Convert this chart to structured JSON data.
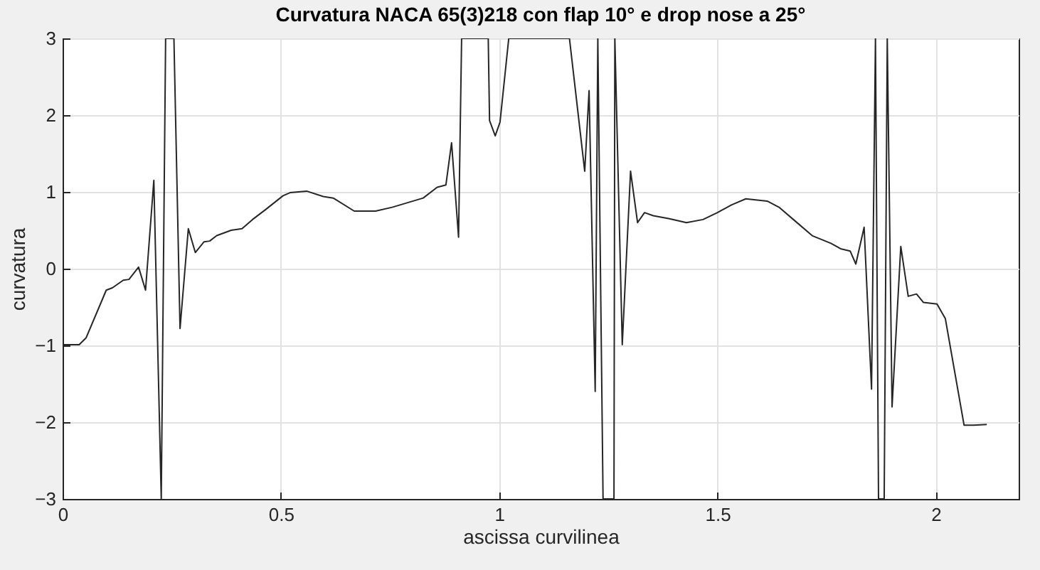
{
  "chart_data": {
    "type": "line",
    "title": "Curvatura NACA 65(3)218 con flap 10° e drop nose a 25°",
    "xlabel": "ascissa curvilinea",
    "ylabel": "curvatura",
    "x": [
      0,
      0.038,
      0.054,
      0.1,
      0.114,
      0.139,
      0.152,
      0.174,
      0.19,
      0.209,
      0.226,
      0.236,
      0.255,
      0.269,
      0.288,
      0.304,
      0.324,
      0.337,
      0.353,
      0.386,
      0.411,
      0.435,
      0.465,
      0.505,
      0.521,
      0.559,
      0.597,
      0.62,
      0.668,
      0.717,
      0.755,
      0.826,
      0.858,
      0.878,
      0.891,
      0.907,
      0.914,
      0.975,
      0.978,
      0.991,
      1.002,
      1.022,
      1.161,
      1.196,
      1.206,
      1.22,
      1.226,
      1.238,
      1.263,
      1.265,
      1.282,
      1.301,
      1.317,
      1.333,
      1.353,
      1.39,
      1.429,
      1.467,
      1.5,
      1.532,
      1.565,
      1.614,
      1.641,
      1.674,
      1.717,
      1.76,
      1.782,
      1.804,
      1.817,
      1.836,
      1.853,
      1.862,
      1.869,
      1.882,
      1.889,
      1.9,
      1.92,
      1.937,
      1.956,
      1.972,
      2.003,
      2.022,
      2.065,
      2.087,
      2.117
    ],
    "series": [
      {
        "color": "#262626",
        "values": [
          -0.99,
          -0.99,
          -0.9,
          -0.28,
          -0.25,
          -0.15,
          -0.14,
          0.02,
          -0.28,
          1.15,
          -3,
          3,
          3,
          -0.78,
          0.52,
          0.21,
          0.35,
          0.36,
          0.43,
          0.5,
          0.52,
          0.64,
          0.77,
          0.95,
          0.99,
          1.01,
          0.94,
          0.92,
          0.75,
          0.75,
          0.8,
          0.92,
          1.06,
          1.09,
          1.64,
          0.41,
          3,
          3,
          1.93,
          1.73,
          1.91,
          3,
          3,
          1.27,
          2.32,
          -1.6,
          3,
          -3,
          -3,
          3,
          -0.99,
          1.27,
          0.6,
          0.73,
          0.69,
          0.65,
          0.6,
          0.64,
          0.73,
          0.83,
          0.91,
          0.88,
          0.8,
          0.64,
          0.43,
          0.33,
          0.26,
          0.23,
          0.06,
          0.54,
          -1.57,
          3,
          -3,
          -3,
          3,
          -1.8,
          0.29,
          -0.36,
          -0.33,
          -0.44,
          -0.46,
          -0.65,
          -2.04,
          -2.04,
          -2.03
        ]
      }
    ],
    "xlim": [
      0,
      2.19
    ],
    "ylim": [
      -3,
      3
    ],
    "xticks": [
      0,
      0.5,
      1,
      1.5,
      2
    ],
    "yticks": [
      -3,
      -2,
      -1,
      0,
      1,
      2,
      3
    ],
    "grid": true
  }
}
